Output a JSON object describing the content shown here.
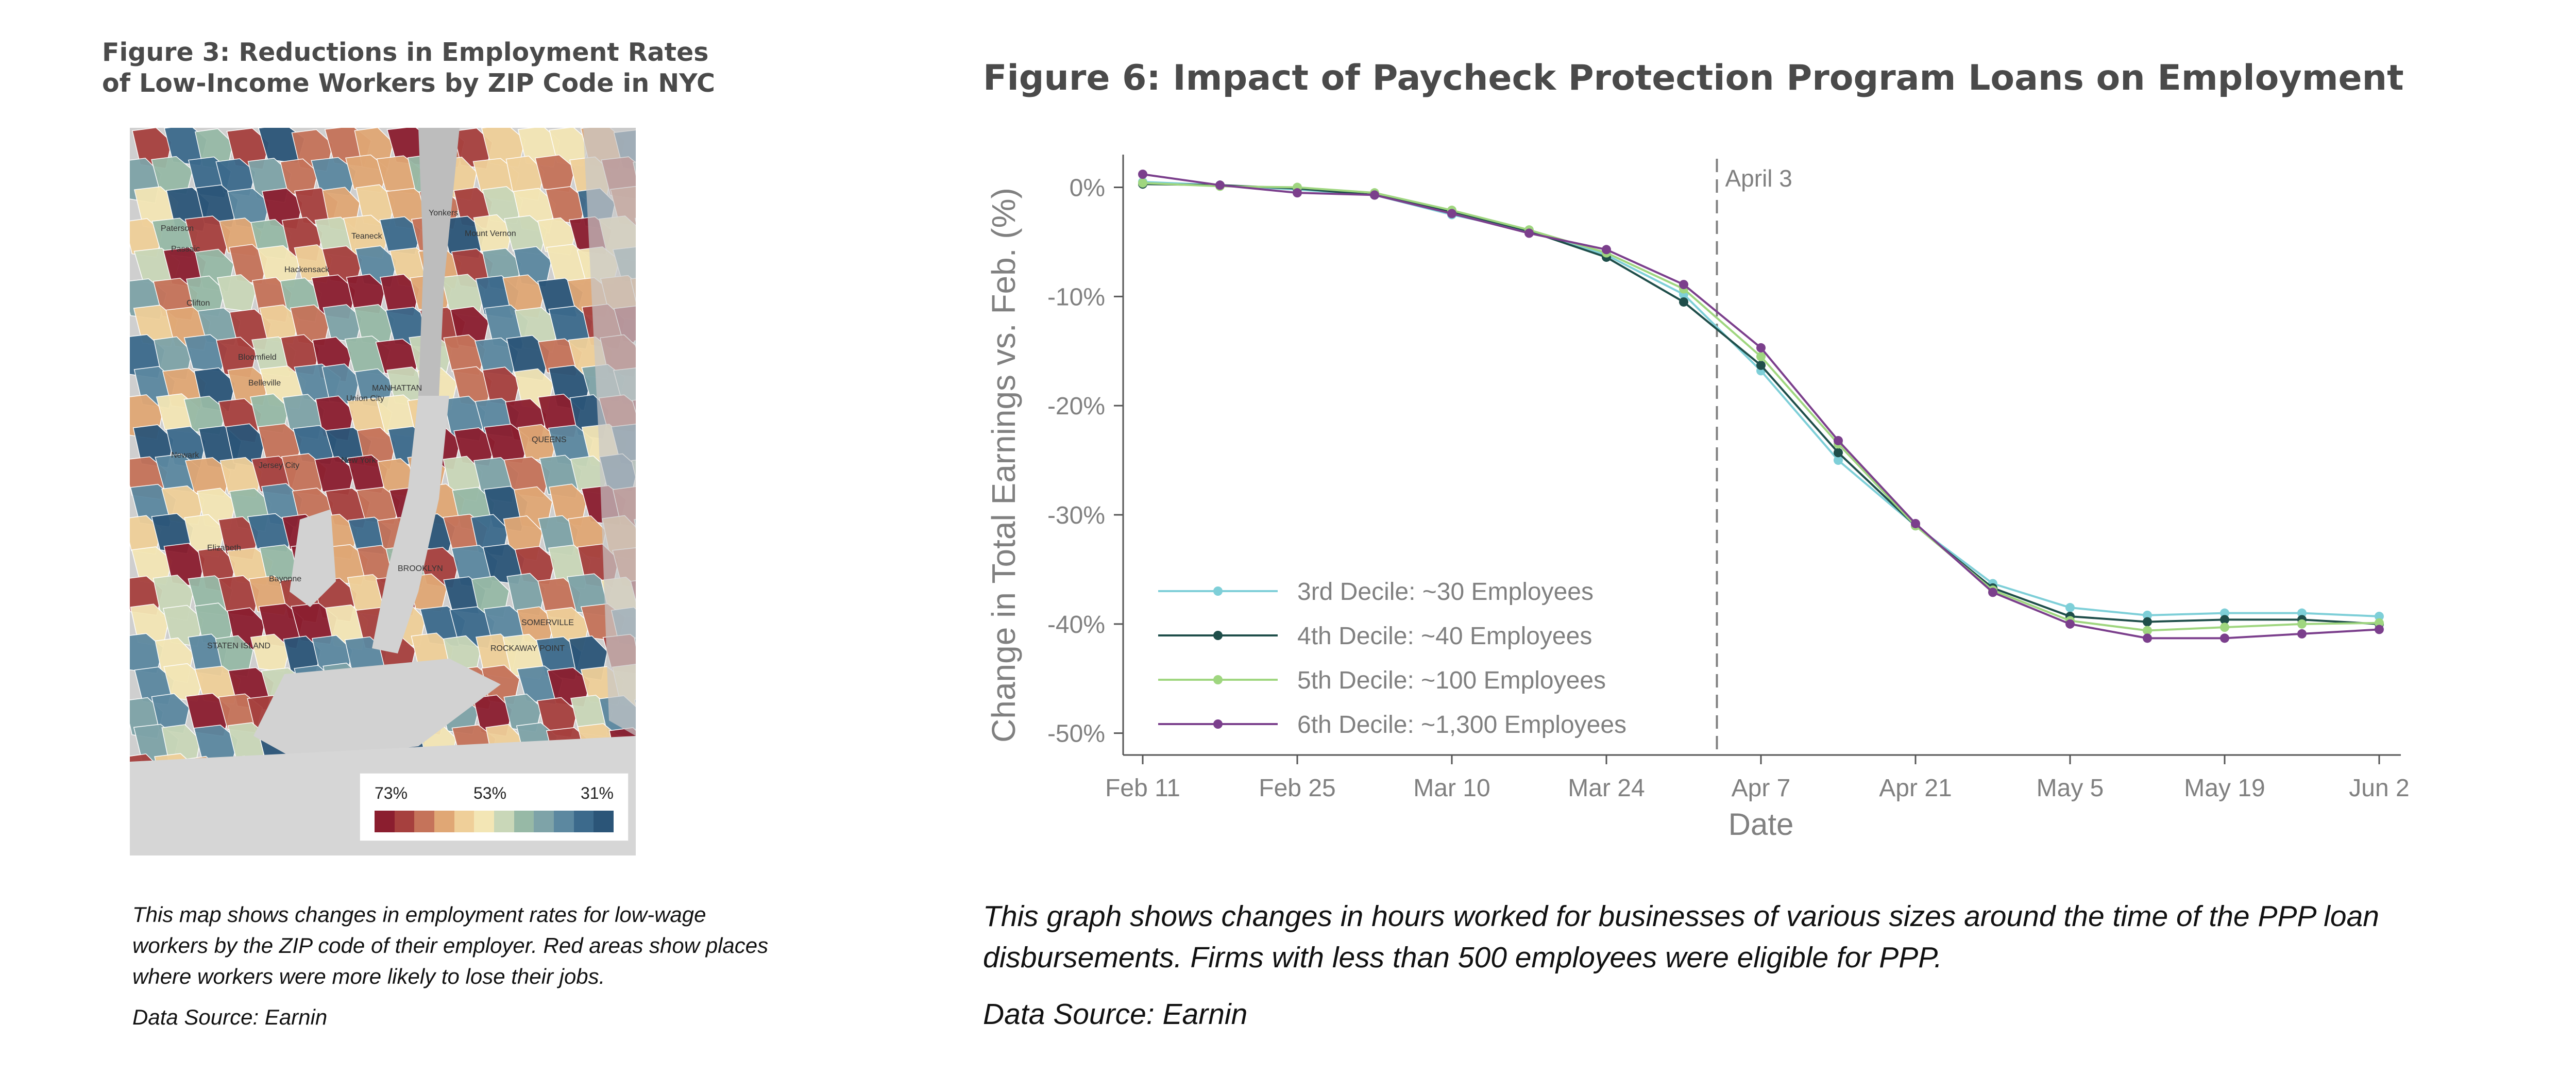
{
  "figure3": {
    "title_line1": "Figure 3: Reductions in Employment Rates",
    "title_line2": "of Low-Income Workers by ZIP Code in NYC",
    "legend": {
      "high": "73%",
      "mid": "53%",
      "low": "31%"
    },
    "legend_colors": [
      "#8b1e2f",
      "#a6403e",
      "#c5735a",
      "#e0a775",
      "#efcf99",
      "#f3e6b5",
      "#c9d7b8",
      "#97b9a6",
      "#7ea3a8",
      "#5c88a0",
      "#3c6a8c",
      "#2b5578"
    ],
    "map_labels": [
      "Yonkers",
      "Paterson",
      "Hackensack",
      "Mount Vernon",
      "Clifton",
      "Union City",
      "MANHATTAN",
      "QUEENS",
      "Newark",
      "Jersey City",
      "New York",
      "BROOKLYN",
      "STATEN ISLAND",
      "SOMERVILLE",
      "ROCKAWAY POINT",
      "Teaneck",
      "Passaic",
      "Bloomfield",
      "Belleville",
      "Elizabeth",
      "Bayonne"
    ],
    "caption": "This map shows changes in employment rates for low-wage workers by the ZIP code of their employer. Red areas show places where workers were more likely to lose their jobs.",
    "source": "Data Source: Earnin"
  },
  "figure6": {
    "title": "Figure 6: Impact of Paycheck Protection Program Loans on Employment",
    "caption": "This graph shows changes in hours worked for businesses of various sizes around the time of the PPP loan disbursements. Firms with less than 500 employees were eligible for PPP.",
    "source": "Data Source: Earnin"
  },
  "chart_data": {
    "type": "line",
    "title": "Figure 6: Impact of Paycheck Protection Program Loans on Employment",
    "xlabel": "Date",
    "ylabel": "Change in Total Earnings vs. Feb. (%)",
    "ylim": [
      -52,
      3
    ],
    "yticks": [
      0,
      -10,
      -20,
      -30,
      -40,
      -50
    ],
    "ytick_labels": [
      "0%",
      "-10%",
      "-20%",
      "-30%",
      "-40%",
      "-50%"
    ],
    "x": [
      "Feb 11",
      "Feb 18",
      "Feb 25",
      "Mar 3",
      "Mar 10",
      "Mar 17",
      "Mar 24",
      "Mar 31",
      "Apr 7",
      "Apr 14",
      "Apr 21",
      "Apr 28",
      "May 5",
      "May 12",
      "May 19",
      "May 26",
      "Jun 2"
    ],
    "xtick_labels": [
      "Feb 11",
      "Feb 25",
      "Mar 10",
      "Mar 24",
      "Apr 7",
      "Apr 21",
      "May 5",
      "May 19",
      "Jun 2"
    ],
    "xtick_indices": [
      0,
      2,
      4,
      6,
      8,
      10,
      12,
      14,
      16
    ],
    "annotation": {
      "label": "April 3",
      "x_index": 7.43
    },
    "series": [
      {
        "name": "3rd Decile: ~30 Employees",
        "color": "#7ecfd8",
        "values": [
          0.5,
          0.2,
          -0.2,
          -0.7,
          -2.5,
          -4.0,
          -6.2,
          -9.8,
          -16.8,
          -25.0,
          -31.0,
          -36.3,
          -38.5,
          -39.2,
          -39.0,
          -39.0,
          -39.3
        ]
      },
      {
        "name": "4th Decile: ~40 Employees",
        "color": "#1f4e4a",
        "values": [
          0.3,
          0.2,
          -0.1,
          -0.7,
          -2.2,
          -4.0,
          -6.4,
          -10.5,
          -16.3,
          -24.3,
          -31.0,
          -36.7,
          -39.3,
          -39.8,
          -39.6,
          -39.6,
          -40.0
        ]
      },
      {
        "name": "5th Decile: ~100 Employees",
        "color": "#9fd67f",
        "values": [
          0.4,
          0.1,
          0.0,
          -0.5,
          -2.1,
          -3.9,
          -6.0,
          -9.3,
          -15.5,
          -23.5,
          -31.0,
          -36.9,
          -39.7,
          -40.6,
          -40.3,
          -40.0,
          -39.9
        ]
      },
      {
        "name": "6th Decile: ~1,300 Employees",
        "color": "#7b3f8c",
        "values": [
          1.2,
          0.2,
          -0.5,
          -0.7,
          -2.4,
          -4.2,
          -5.7,
          -8.9,
          -14.7,
          -23.2,
          -30.8,
          -37.1,
          -40.0,
          -41.3,
          -41.3,
          -40.9,
          -40.5
        ]
      }
    ]
  }
}
